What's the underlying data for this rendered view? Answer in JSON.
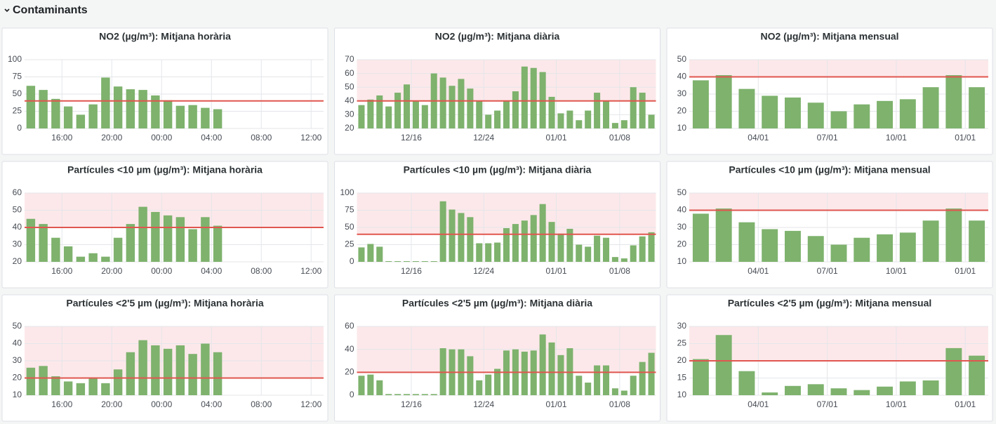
{
  "header": "Contaminants",
  "chart_data": [
    {
      "type": "bar",
      "title": "NO2 (µg/m³): Mitjana horària",
      "categories": [
        null,
        null,
        null,
        "16:00",
        null,
        null,
        null,
        "20:00",
        null,
        null,
        null,
        "00:00",
        null,
        null,
        null,
        "04:00",
        null,
        null,
        null,
        "08:00",
        null,
        null,
        null,
        "12:00"
      ],
      "values": [
        62,
        56,
        43,
        32,
        20,
        35,
        74,
        61,
        57,
        56,
        48,
        41,
        33,
        34,
        30,
        28,
        null,
        null,
        null,
        null,
        null,
        null,
        null,
        null
      ],
      "color": "#7eb26d",
      "ylim": [
        0,
        100
      ],
      "yticks": [
        0,
        25,
        50,
        75,
        100
      ],
      "grid": true,
      "threshold": 40,
      "threshold_color": "#e0564f",
      "threshold_band": false,
      "band_color": "#fce8ea"
    },
    {
      "type": "bar",
      "title": "NO2 (µg/m³): Mitjana diària",
      "categories": [
        null,
        null,
        null,
        null,
        null,
        null,
        "12/16",
        null,
        null,
        null,
        null,
        null,
        null,
        null,
        "12/24",
        null,
        null,
        null,
        null,
        null,
        null,
        null,
        "01/01",
        null,
        null,
        null,
        null,
        null,
        null,
        "01/08",
        null,
        null,
        null
      ],
      "values": [
        37,
        41,
        44,
        36,
        46,
        52,
        40,
        37,
        60,
        57,
        51,
        56,
        49,
        40,
        30,
        33,
        40,
        47,
        65,
        64,
        61,
        43,
        31,
        33,
        26,
        33,
        46,
        40,
        24,
        26,
        50,
        46,
        30
      ],
      "color": "#7eb26d",
      "ylim": [
        20,
        70
      ],
      "yticks": [
        20,
        30,
        40,
        50,
        60,
        70
      ],
      "grid": true,
      "threshold": 40,
      "threshold_color": "#e0564f",
      "threshold_band": true,
      "band_color": "#fce8ea"
    },
    {
      "type": "bar",
      "title": "NO2 (µg/m³): Mitjana mensual",
      "categories": [
        null,
        null,
        null,
        "04/01",
        null,
        null,
        "07/01",
        null,
        null,
        "10/01",
        null,
        null,
        "01/01"
      ],
      "values": [
        38,
        41,
        33,
        29,
        28,
        25,
        20,
        24,
        26,
        27,
        34,
        41,
        34
      ],
      "color": "#7eb26d",
      "ylim": [
        10,
        50
      ],
      "yticks": [
        10,
        20,
        30,
        40,
        50
      ],
      "grid": true,
      "threshold": 40,
      "threshold_color": "#e0564f",
      "threshold_band": true,
      "band_color": "#fce8ea"
    },
    {
      "type": "bar",
      "title": "Partícules <10 µm (µg/m³): Mitjana horària",
      "categories": [
        null,
        null,
        null,
        "16:00",
        null,
        null,
        null,
        "20:00",
        null,
        null,
        null,
        "00:00",
        null,
        null,
        null,
        "04:00",
        null,
        null,
        null,
        "08:00",
        null,
        null,
        null,
        "12:00"
      ],
      "values": [
        45,
        42,
        34,
        29,
        23,
        25,
        23,
        34,
        42,
        52,
        49,
        47,
        46,
        39,
        46,
        41,
        null,
        null,
        null,
        null,
        null,
        null,
        null,
        null
      ],
      "color": "#7eb26d",
      "ylim": [
        20,
        60
      ],
      "yticks": [
        20,
        30,
        40,
        50,
        60
      ],
      "grid": true,
      "threshold": 40,
      "threshold_color": "#e0564f",
      "threshold_band": true,
      "band_color": "#fce8ea"
    },
    {
      "type": "bar",
      "title": "Partícules <10 µm (µg/m³): Mitjana diària",
      "categories": [
        null,
        null,
        null,
        null,
        null,
        null,
        "12/16",
        null,
        null,
        null,
        null,
        null,
        null,
        null,
        "12/24",
        null,
        null,
        null,
        null,
        null,
        null,
        null,
        "01/01",
        null,
        null,
        null,
        null,
        null,
        null,
        "01/08",
        null,
        null,
        null
      ],
      "values": [
        21,
        26,
        22,
        1,
        1,
        1,
        1,
        1,
        1,
        88,
        76,
        71,
        65,
        27,
        27,
        28,
        49,
        55,
        60,
        68,
        84,
        58,
        41,
        48,
        25,
        22,
        38,
        35,
        7,
        5,
        24,
        37,
        43
      ],
      "color": "#7eb26d",
      "ylim": [
        0,
        100
      ],
      "yticks": [
        0,
        25,
        50,
        75,
        100
      ],
      "grid": true,
      "threshold": 40,
      "threshold_color": "#e0564f",
      "threshold_band": true,
      "band_color": "#fce8ea"
    },
    {
      "type": "bar",
      "title": "Partícules <10 µm (µg/m³): Mitjana mensual",
      "categories": [
        null,
        null,
        null,
        "04/01",
        null,
        null,
        "07/01",
        null,
        null,
        "10/01",
        null,
        null,
        "01/01"
      ],
      "values": [
        38,
        41,
        33,
        29,
        28,
        25,
        20,
        24,
        26,
        27,
        34,
        41,
        34
      ],
      "color": "#7eb26d",
      "ylim": [
        10,
        50
      ],
      "yticks": [
        10,
        20,
        30,
        40,
        50
      ],
      "grid": true,
      "threshold": 40,
      "threshold_color": "#e0564f",
      "threshold_band": true,
      "band_color": "#fce8ea"
    },
    {
      "type": "bar",
      "title": "Partícules <2'5 µm (µg/m³): Mitjana horària",
      "categories": [
        null,
        null,
        null,
        "16:00",
        null,
        null,
        null,
        "20:00",
        null,
        null,
        null,
        "00:00",
        null,
        null,
        null,
        "04:00",
        null,
        null,
        null,
        "08:00",
        null,
        null,
        null,
        "12:00"
      ],
      "values": [
        26,
        27,
        21,
        18,
        17,
        20,
        17,
        25,
        35,
        42,
        39,
        37,
        39,
        34,
        40,
        35,
        null,
        null,
        null,
        null,
        null,
        null,
        null,
        null
      ],
      "color": "#7eb26d",
      "ylim": [
        10,
        50
      ],
      "yticks": [
        10,
        20,
        30,
        40,
        50
      ],
      "grid": true,
      "threshold": 20,
      "threshold_color": "#e0564f",
      "threshold_band": true,
      "band_color": "#fce8ea"
    },
    {
      "type": "bar",
      "title": "Partícules <2'5 µm (µg/m³): Mitjana diària",
      "categories": [
        null,
        null,
        null,
        null,
        null,
        null,
        "12/16",
        null,
        null,
        null,
        null,
        null,
        null,
        null,
        "12/24",
        null,
        null,
        null,
        null,
        null,
        null,
        null,
        "01/01",
        null,
        null,
        null,
        null,
        null,
        null,
        "01/08",
        null,
        null,
        null
      ],
      "values": [
        17,
        18,
        13,
        1,
        1,
        1,
        1,
        1,
        1,
        41,
        40,
        40,
        34,
        13,
        18,
        23,
        39,
        40,
        38,
        39,
        53,
        46,
        35,
        41,
        17,
        11,
        26,
        26,
        6,
        4,
        17,
        29,
        37
      ],
      "color": "#7eb26d",
      "ylim": [
        0,
        60
      ],
      "yticks": [
        0,
        20,
        40,
        60
      ],
      "grid": true,
      "threshold": 20,
      "threshold_color": "#e0564f",
      "threshold_band": true,
      "band_color": "#fce8ea"
    },
    {
      "type": "bar",
      "title": "Partícules <2'5 µm (µg/m³): Mitjana mensual",
      "categories": [
        null,
        null,
        null,
        "04/01",
        null,
        null,
        "07/01",
        null,
        null,
        "10/01",
        null,
        null,
        "01/01"
      ],
      "values": [
        20.5,
        27.5,
        17,
        10.8,
        12.7,
        13.2,
        12,
        11.5,
        12.5,
        14,
        14.3,
        23.7,
        21.5
      ],
      "color": "#7eb26d",
      "ylim": [
        10,
        30
      ],
      "yticks": [
        10,
        15,
        20,
        25,
        30
      ],
      "grid": true,
      "threshold": 20,
      "threshold_color": "#e0564f",
      "threshold_band": true,
      "band_color": "#fce8ea"
    }
  ]
}
